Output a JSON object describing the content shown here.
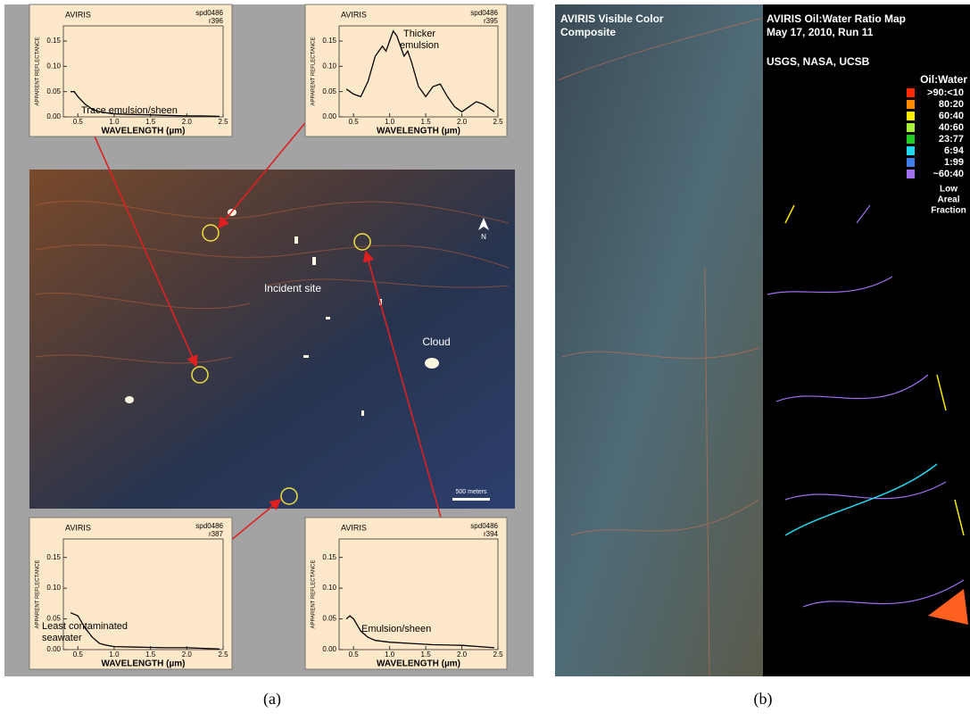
{
  "panel_a": {
    "caption": "(a)",
    "incident_label": "Incident site",
    "cloud_label": "Cloud",
    "north_label": "N",
    "scale_label": "500 meters"
  },
  "panel_b": {
    "caption": "(b)",
    "left_title": [
      "AVIRIS Visible Color",
      "Composite"
    ],
    "right_title": [
      "AVIRIS Oil:Water Ratio Map",
      "May 17, 2010, Run 11"
    ],
    "credit": "USGS, NASA, UCSB",
    "legend_title": "Oil:Water",
    "legend": [
      {
        "label": ">90:<10",
        "color": "#ff2a00"
      },
      {
        "label": "80:20",
        "color": "#ff8c00"
      },
      {
        "label": "60:40",
        "color": "#ffee00"
      },
      {
        "label": "40:60",
        "color": "#a8f03c"
      },
      {
        "label": "23:77",
        "color": "#22cc22"
      },
      {
        "label": "6:94",
        "color": "#22d8f0"
      },
      {
        "label": "1:99",
        "color": "#3f7fe8"
      },
      {
        "label": "~60:40",
        "color": "#a070f0"
      }
    ],
    "legend_note": [
      "Low",
      "Areal",
      "Fraction"
    ]
  },
  "chart_data": [
    {
      "type": "line",
      "title": "AVIRIS",
      "id_lines": [
        "spd0486",
        "r396"
      ],
      "annotation": [
        "Trace emulsion/sheen"
      ],
      "xlabel": "WAVELENGTH (µm)",
      "ylabel": "APPARENT REFLECTANCE",
      "xlim": [
        0.3,
        2.5
      ],
      "xticks": [
        0.5,
        {
          "value": 1,
          "label": "1.0"
        },
        1.5,
        {
          "value": 2,
          "label": "2.0"
        },
        2.5
      ],
      "ylim": [
        0,
        0.18
      ],
      "yticks": [
        {
          "value": 0,
          "label": "0.00"
        },
        0.05,
        {
          "value": 0.1,
          "label": "0.10"
        },
        0.15
      ],
      "x": [
        0.4,
        0.45,
        0.5,
        0.6,
        0.7,
        0.8,
        0.9,
        1.0,
        1.2,
        1.5,
        1.7,
        2.0,
        2.2,
        2.45
      ],
      "series": [
        {
          "color": "#000000",
          "values": [
            0.05,
            0.05,
            0.04,
            0.025,
            0.015,
            0.01,
            0.008,
            0.006,
            0.005,
            0.004,
            0.003,
            0.002,
            0.002,
            0.001
          ]
        }
      ]
    },
    {
      "type": "line",
      "title": "AVIRIS",
      "id_lines": [
        "spd0486",
        "r395"
      ],
      "annotation": [
        "Thicker",
        "emulsion"
      ],
      "xlabel": "WAVELENGTH (µm)",
      "ylabel": "APPARENT REFLECTANCE",
      "xlim": [
        0.3,
        2.5
      ],
      "xticks": [
        0.5,
        {
          "value": 1,
          "label": "1.0"
        },
        1.5,
        {
          "value": 2,
          "label": "2.0"
        },
        2.5
      ],
      "ylim": [
        0,
        0.18
      ],
      "yticks": [
        {
          "value": 0,
          "label": "0.00"
        },
        0.05,
        {
          "value": 0.1,
          "label": "0.10"
        },
        0.15
      ],
      "x": [
        0.4,
        0.5,
        0.6,
        0.7,
        0.8,
        0.9,
        0.95,
        1.0,
        1.05,
        1.1,
        1.2,
        1.25,
        1.3,
        1.4,
        1.5,
        1.6,
        1.7,
        1.8,
        1.9,
        2.0,
        2.1,
        2.2,
        2.3,
        2.45
      ],
      "series": [
        {
          "color": "#000000",
          "values": [
            0.055,
            0.045,
            0.04,
            0.07,
            0.12,
            0.14,
            0.13,
            0.15,
            0.17,
            0.16,
            0.12,
            0.13,
            0.11,
            0.06,
            0.04,
            0.06,
            0.065,
            0.04,
            0.02,
            0.01,
            0.02,
            0.03,
            0.025,
            0.01
          ]
        }
      ]
    },
    {
      "type": "line",
      "title": "AVIRIS",
      "id_lines": [
        "spd0486",
        "r387"
      ],
      "annotation": [
        "Least contaminated",
        "seawater"
      ],
      "xlabel": "WAVELENGTH (µm)",
      "ylabel": "APPARENT REFLECTANCE",
      "xlim": [
        0.3,
        2.5
      ],
      "xticks": [
        0.5,
        {
          "value": 1,
          "label": "1.0"
        },
        1.5,
        {
          "value": 2,
          "label": "2.0"
        },
        2.5
      ],
      "ylim": [
        0,
        0.18
      ],
      "yticks": [
        {
          "value": 0,
          "label": "0.00"
        },
        0.05,
        {
          "value": 0.1,
          "label": "0.10"
        },
        0.15
      ],
      "x": [
        0.4,
        0.5,
        0.6,
        0.7,
        0.8,
        0.9,
        1.0,
        1.3,
        1.7,
        2.0,
        2.45
      ],
      "series": [
        {
          "color": "#000000",
          "values": [
            0.06,
            0.055,
            0.035,
            0.02,
            0.01,
            0.007,
            0.005,
            0.004,
            0.003,
            0.003,
            0.001
          ]
        }
      ]
    },
    {
      "type": "line",
      "title": "AVIRIS",
      "id_lines": [
        "spd0486",
        "r394"
      ],
      "annotation": [
        "Emulsion/sheen"
      ],
      "xlabel": "WAVELENGTH (µm)",
      "ylabel": "APPARENT REFLECTANCE",
      "xlim": [
        0.3,
        2.5
      ],
      "xticks": [
        0.5,
        {
          "value": 1,
          "label": "1.0"
        },
        1.5,
        {
          "value": 2,
          "label": "2.0"
        },
        2.5
      ],
      "ylim": [
        0,
        0.18
      ],
      "yticks": [
        {
          "value": 0,
          "label": "0.00"
        },
        0.05,
        {
          "value": 0.1,
          "label": "0.10"
        },
        0.15
      ],
      "x": [
        0.4,
        0.45,
        0.5,
        0.6,
        0.7,
        0.8,
        1.0,
        1.3,
        1.6,
        2.0,
        2.45
      ],
      "series": [
        {
          "color": "#000000",
          "values": [
            0.05,
            0.055,
            0.05,
            0.03,
            0.02,
            0.015,
            0.012,
            0.01,
            0.008,
            0.007,
            0.003
          ]
        }
      ]
    }
  ]
}
